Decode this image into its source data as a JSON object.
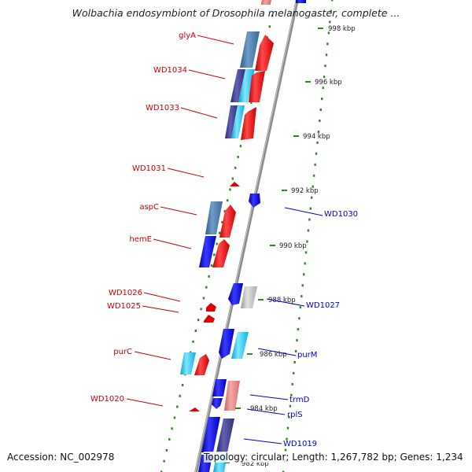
{
  "header": {
    "title": "Wolbachia endosymbiont of Drosophila melanogaster, complete ..."
  },
  "footer": {
    "accession": "Accession: NC_002978",
    "stats": "Topology: circular; Length: 1,267,782 bp; Genes: 1,234"
  },
  "colors": {
    "forward_label": "#cc0000",
    "reverse_label": "#0000cc",
    "tick": "#2e8b22",
    "backbone": "#8a8a8a"
  },
  "ticks": [
    {
      "label": "998 kbp"
    },
    {
      "label": "996 kbp"
    },
    {
      "label": "994 kbp"
    },
    {
      "label": "992 kbp"
    },
    {
      "label": "990 kbp"
    },
    {
      "label": "988 kbp"
    },
    {
      "label": "986 kbp"
    },
    {
      "label": "984 kbp"
    },
    {
      "label": "982 kbp"
    }
  ],
  "forward_genes": [
    {
      "label": "glyA"
    },
    {
      "label": "WD1034"
    },
    {
      "label": "WD1033"
    },
    {
      "label": "WD1031"
    },
    {
      "label": "aspC"
    },
    {
      "label": "hemE"
    },
    {
      "label": "WD1026"
    },
    {
      "label": "WD1025"
    },
    {
      "label": "purC"
    },
    {
      "label": "WD1020"
    }
  ],
  "reverse_genes": [
    {
      "label": "WD1030"
    },
    {
      "label": "WD1027"
    },
    {
      "label": "purM"
    },
    {
      "label": "trmD"
    },
    {
      "label": "rplS"
    },
    {
      "label": "WD1019"
    }
  ]
}
